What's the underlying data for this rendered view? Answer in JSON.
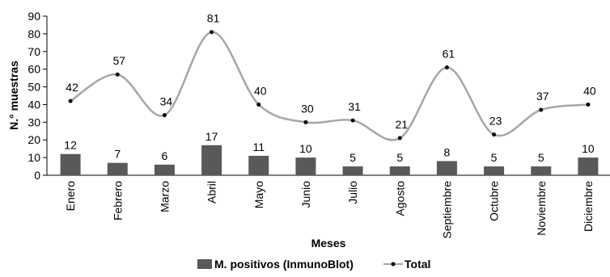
{
  "chart_data": {
    "type": "bar",
    "categories": [
      "Enero",
      "Febrero",
      "Marzo",
      "Abril",
      "Mayo",
      "Junio",
      "Julio",
      "Agosto",
      "Septiembre",
      "Octubre",
      "Noviembre",
      "Diciembre"
    ],
    "series": [
      {
        "name": "M. positivos (InmunoBlot)",
        "type": "bar",
        "values": [
          12,
          7,
          6,
          17,
          11,
          10,
          5,
          5,
          8,
          5,
          5,
          10
        ],
        "color": "#595959"
      },
      {
        "name": "Total",
        "type": "line",
        "values": [
          42,
          57,
          34,
          81,
          40,
          30,
          31,
          21,
          61,
          23,
          37,
          40
        ],
        "color": "#a6a6a6"
      }
    ],
    "xlabel": "Meses",
    "ylabel": "N.° muestras",
    "ylim": [
      0,
      90
    ],
    "yticks": [
      0,
      10,
      20,
      30,
      40,
      50,
      60,
      70,
      80,
      90
    ],
    "grid": false,
    "legend_position": "bottom"
  }
}
